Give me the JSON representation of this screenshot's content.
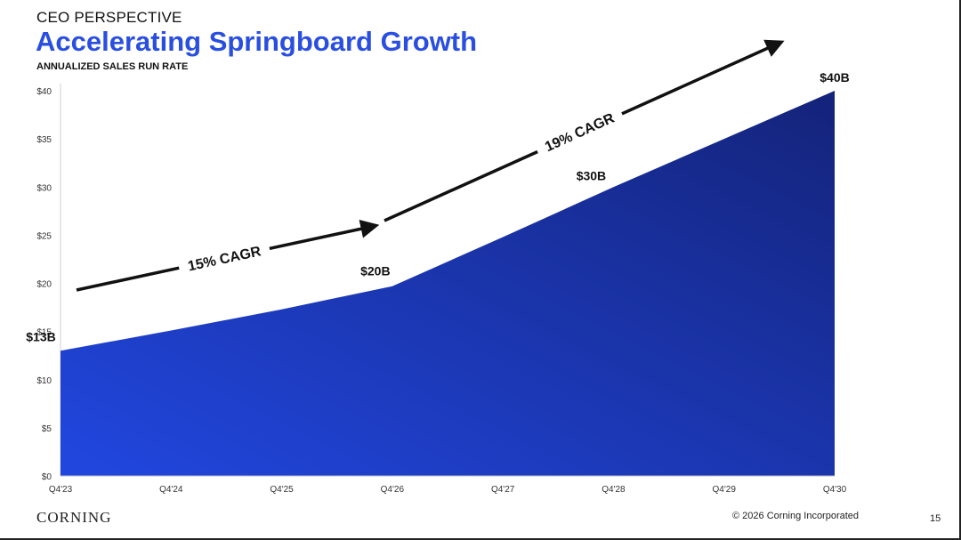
{
  "header": {
    "eyebrow": "CEO PERSPECTIVE",
    "title": "Accelerating Springboard Growth",
    "subtitle": "ANNUALIZED SALES RUN RATE"
  },
  "footer": {
    "logo": "CORNING",
    "copyright": "© 2026 Corning Incorporated",
    "page_number": "15"
  },
  "colors": {
    "title": "#2a4fe0",
    "area_start": "#2147e0",
    "area_end": "#14237a",
    "arrow": "#111111"
  },
  "chart_data": {
    "type": "area",
    "title": "",
    "xlabel": "",
    "ylabel": "",
    "categories": [
      "Q4'23",
      "Q4'24",
      "Q4'25",
      "Q4'26",
      "Q4'27",
      "Q4'28",
      "Q4'29",
      "Q4'30"
    ],
    "values": [
      13,
      15.1,
      17.3,
      19.7,
      24.8,
      30,
      35,
      40
    ],
    "ylim": [
      0,
      40
    ],
    "yticks": [
      {
        "value": 0,
        "label": "$0"
      },
      {
        "value": 5,
        "label": "$5"
      },
      {
        "value": 10,
        "label": "$10"
      },
      {
        "value": 15,
        "label": "$15"
      },
      {
        "value": 20,
        "label": "$20"
      },
      {
        "value": 25,
        "label": "$25"
      },
      {
        "value": 30,
        "label": "$30"
      },
      {
        "value": 35,
        "label": "$35"
      },
      {
        "value": 40,
        "label": "$40"
      }
    ],
    "data_labels": [
      {
        "category": "Q4'23",
        "value": 13,
        "text": "$13B"
      },
      {
        "category": "Q4'26",
        "value": 19.7,
        "text": "$20B"
      },
      {
        "category": "Q4'28",
        "value": 30,
        "text": "$30B"
      },
      {
        "category": "Q4'30",
        "value": 40,
        "text": "$40B"
      }
    ],
    "annotations": [
      {
        "text": "15% CAGR",
        "from": "Q4'23",
        "to": "Q4'26"
      },
      {
        "text": "19% CAGR",
        "from": "Q4'26",
        "to": "Q4'30"
      }
    ],
    "grid": false,
    "legend": "none"
  }
}
